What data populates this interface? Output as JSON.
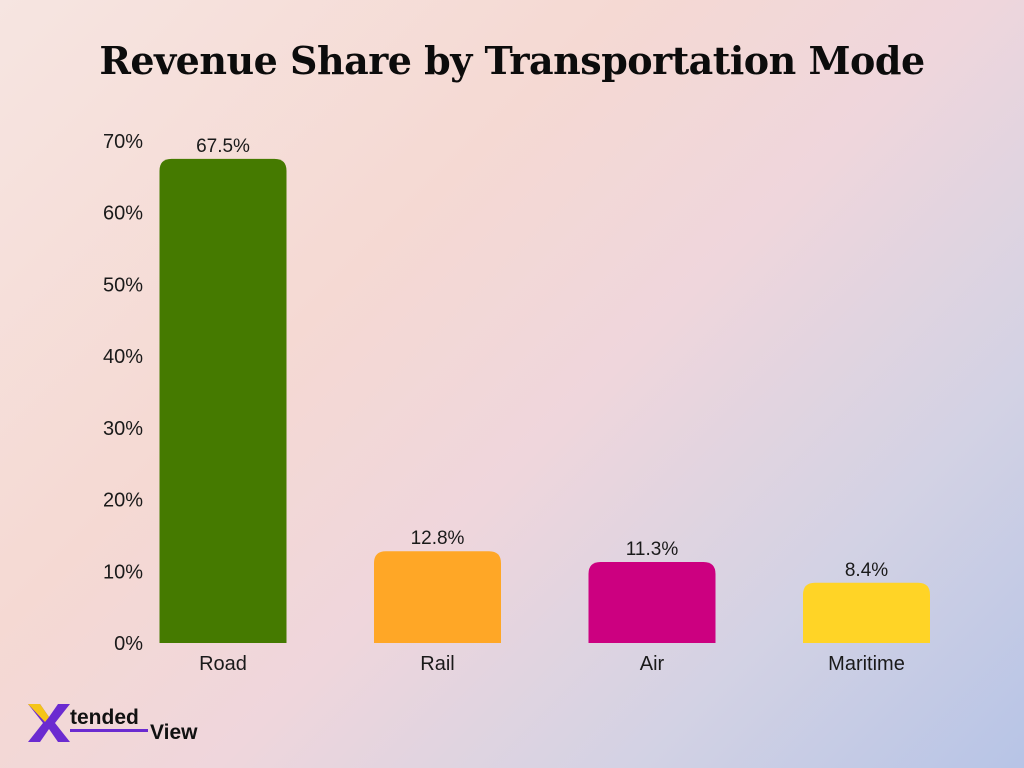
{
  "chart_data": {
    "type": "bar",
    "title": "Revenue Share by Transportation Mode",
    "xlabel": "",
    "ylabel": "",
    "categories": [
      "Road",
      "Rail",
      "Air",
      "Maritime"
    ],
    "values": [
      67.5,
      12.8,
      11.3,
      8.4
    ],
    "data_labels": [
      "67.5%",
      "12.8%",
      "11.3%",
      "8.4%"
    ],
    "colors": [
      "#457a00",
      "#ffa726",
      "#cc0080",
      "#ffd426"
    ],
    "ylim": [
      0,
      70
    ],
    "yticks": [
      0,
      10,
      20,
      30,
      40,
      50,
      60,
      70
    ],
    "ytick_labels": [
      "0%",
      "10%",
      "20%",
      "30%",
      "40%",
      "50%",
      "60%",
      "70%"
    ],
    "grid": false,
    "legend": "none"
  },
  "brand": {
    "logo_text": "XtendedView",
    "logo_colors": {
      "x": "#6b2bd0",
      "tended": "#111111",
      "view": "#111111",
      "accent": "#f5c518"
    }
  }
}
